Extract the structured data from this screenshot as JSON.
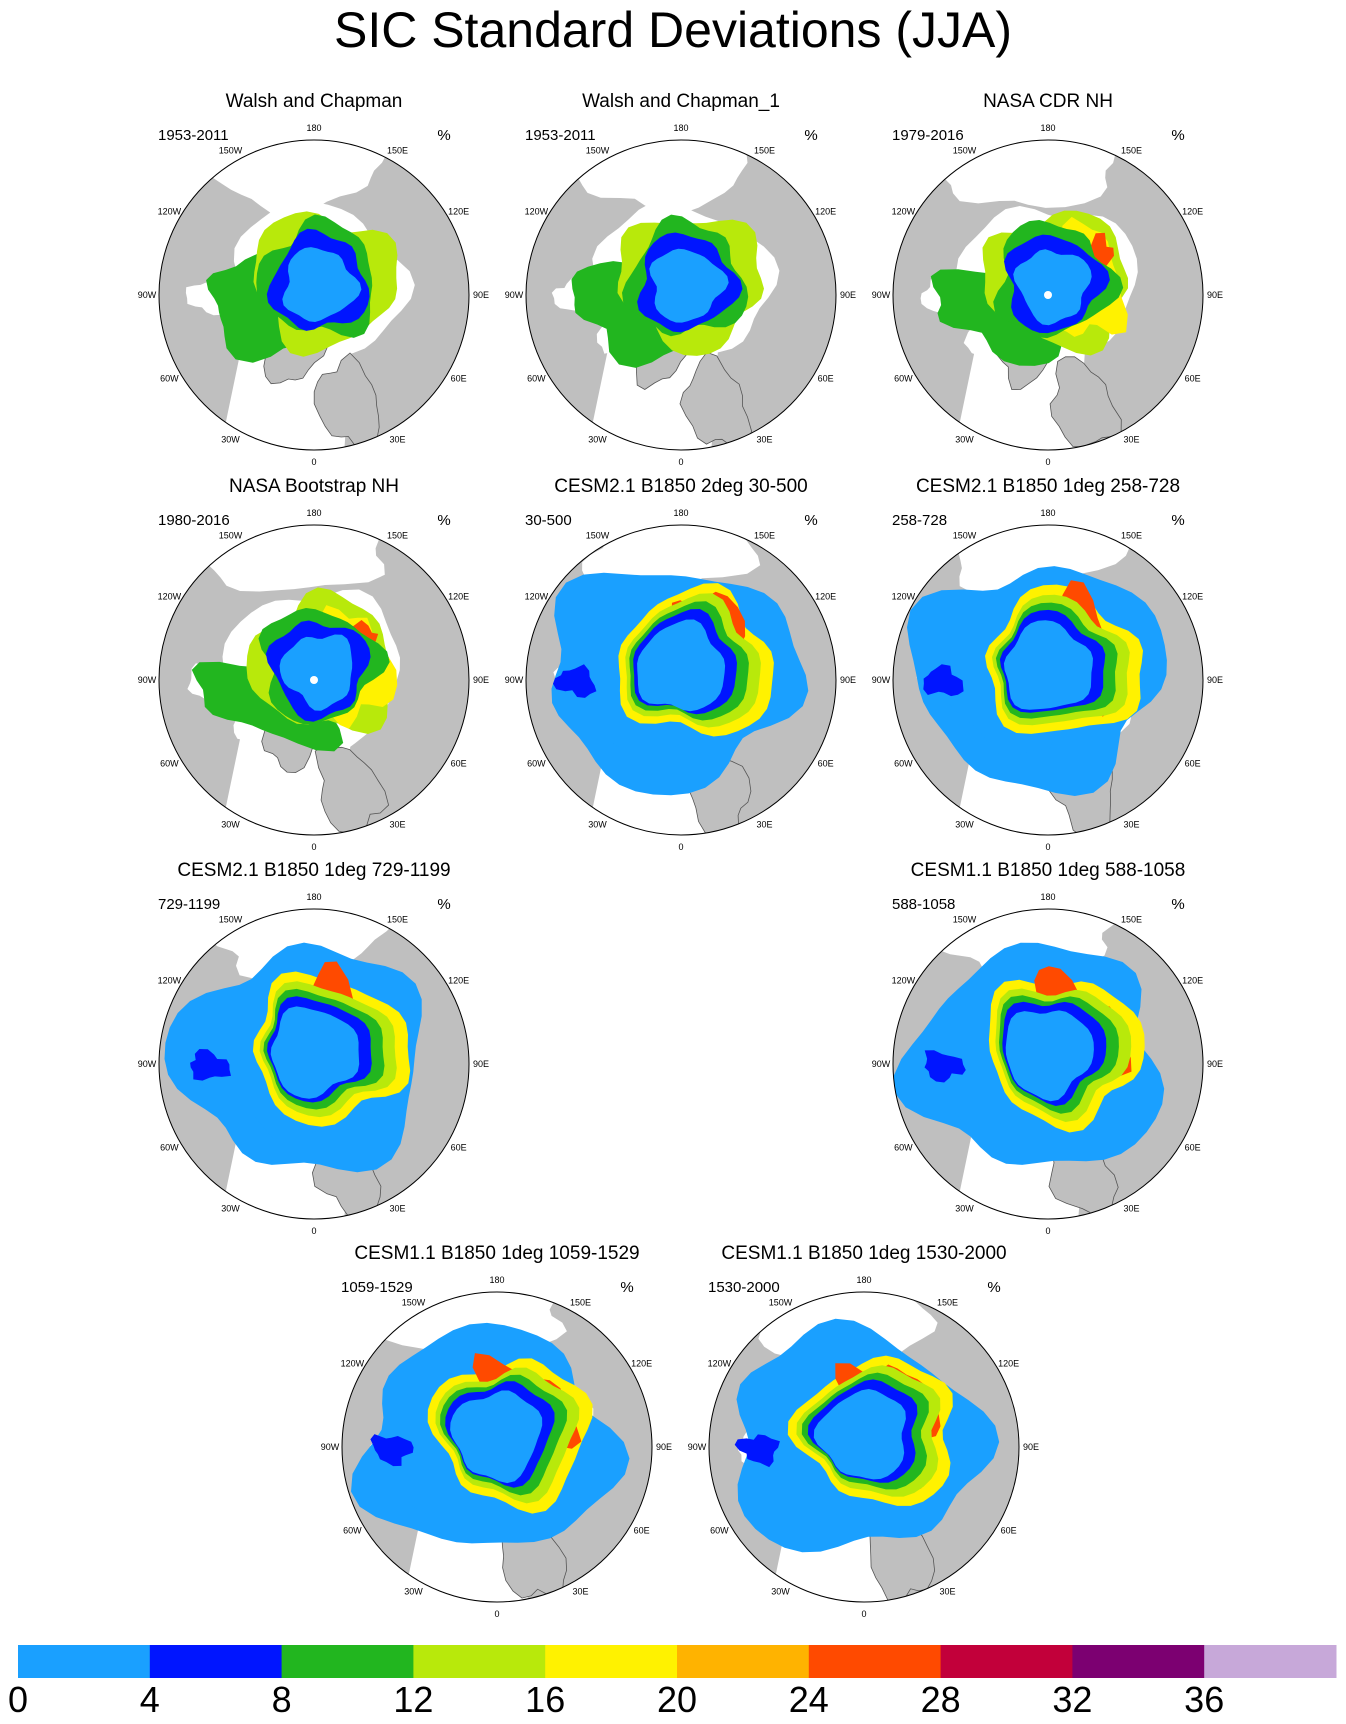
{
  "figure": {
    "title": "SIC Standard Deviations (JJA)",
    "units": "%"
  },
  "colors": {
    "land": "#bfbfbf",
    "ocean": "#ffffff",
    "coast": "#555555"
  },
  "longitude_labels": [
    "180",
    "150E",
    "120E",
    "90E",
    "60E",
    "30E",
    "0",
    "30W",
    "60W",
    "90W",
    "120W",
    "150W"
  ],
  "chart_data": {
    "type": "heatmap",
    "projection": "north-polar-stereographic",
    "colorbar": {
      "levels": [
        "0",
        "4",
        "8",
        "12",
        "16",
        "20",
        "24",
        "28",
        "32",
        "36"
      ],
      "colors": [
        "#1aa0ff",
        "#0015ff",
        "#22b61f",
        "#b8e90b",
        "#fff200",
        "#ffb300",
        "#ff4a00",
        "#c2003a",
        "#7c0071",
        "#c7a8d9"
      ]
    },
    "panels": [
      {
        "title": "Walsh and Chapman",
        "period": "1953-2011",
        "units": "%",
        "style": "obs-wc"
      },
      {
        "title": "Walsh and Chapman_1",
        "period": "1953-2011",
        "units": "%",
        "style": "obs-wc"
      },
      {
        "title": "NASA CDR NH",
        "period": "1979-2016",
        "units": "%",
        "style": "obs-cdr"
      },
      {
        "title": "NASA Bootstrap NH",
        "period": "1980-2016",
        "units": "%",
        "style": "obs-bs"
      },
      {
        "title": "CESM2.1 B1850 2deg 30-500",
        "period": "30-500",
        "units": "%",
        "style": "model"
      },
      {
        "title": "CESM2.1 B1850 1deg 258-728",
        "period": "258-728",
        "units": "%",
        "style": "model"
      },
      {
        "title": "CESM2.1 B1850 1deg 729-1199",
        "period": "729-1199",
        "units": "%",
        "style": "model"
      },
      {
        "title": "CESM1.1 B1850 1deg 588-1058",
        "period": "588-1058",
        "units": "%",
        "style": "model"
      },
      {
        "title": "CESM1.1 B1850 1deg 1059-1529",
        "period": "1059-1529",
        "units": "%",
        "style": "model"
      },
      {
        "title": "CESM1.1 B1850 1deg 1530-2000",
        "period": "1530-2000",
        "units": "%",
        "style": "model"
      }
    ]
  }
}
